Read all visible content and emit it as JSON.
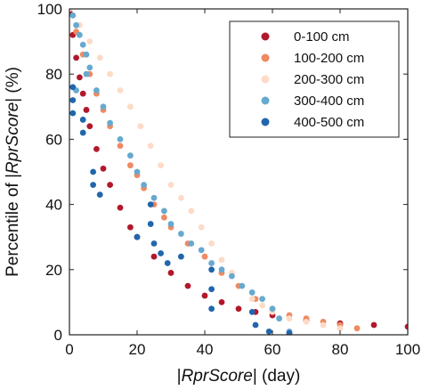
{
  "chart_data": {
    "type": "scatter",
    "title": "",
    "xlabel_prefix": "|",
    "xlabel_italic": "RprScore",
    "xlabel_suffix": "| (day)",
    "ylabel_prefix": "Percentile of |",
    "ylabel_italic": "RprScore",
    "ylabel_suffix": "| (%)",
    "xlim": [
      0,
      100
    ],
    "ylim": [
      0,
      100
    ],
    "xticks": [
      0,
      20,
      40,
      60,
      80,
      100
    ],
    "yticks": [
      0,
      20,
      40,
      60,
      80,
      100
    ],
    "grid": false,
    "legend_position": "top-right",
    "series": [
      {
        "name": "0-100 cm",
        "color": "#b2182b",
        "points": [
          [
            0,
            99
          ],
          [
            1,
            92
          ],
          [
            2,
            85
          ],
          [
            3,
            79
          ],
          [
            4,
            74
          ],
          [
            5,
            69
          ],
          [
            6,
            64
          ],
          [
            8,
            57
          ],
          [
            10,
            51
          ],
          [
            12,
            46
          ],
          [
            15,
            39
          ],
          [
            18,
            33
          ],
          [
            20,
            30
          ],
          [
            25,
            24
          ],
          [
            30,
            19
          ],
          [
            35,
            15
          ],
          [
            40,
            12
          ],
          [
            45,
            10
          ],
          [
            50,
            8
          ],
          [
            55,
            7
          ],
          [
            60,
            6
          ],
          [
            70,
            4.5
          ],
          [
            80,
            3.5
          ],
          [
            90,
            3
          ],
          [
            100,
            2.5
          ]
        ]
      },
      {
        "name": "100-200 cm",
        "color": "#ef8a62",
        "points": [
          [
            0,
            100
          ],
          [
            2,
            93
          ],
          [
            4,
            86
          ],
          [
            6,
            80
          ],
          [
            8,
            74
          ],
          [
            10,
            69
          ],
          [
            12,
            64
          ],
          [
            15,
            58
          ],
          [
            18,
            52
          ],
          [
            20,
            49
          ],
          [
            22,
            45
          ],
          [
            25,
            40
          ],
          [
            28,
            36
          ],
          [
            30,
            33
          ],
          [
            35,
            28
          ],
          [
            40,
            24
          ],
          [
            45,
            19
          ],
          [
            50,
            15
          ],
          [
            55,
            11
          ],
          [
            60,
            8
          ],
          [
            65,
            6
          ],
          [
            70,
            5
          ],
          [
            75,
            4
          ],
          [
            80,
            3
          ],
          [
            85,
            2
          ]
        ]
      },
      {
        "name": "200-300 cm",
        "color": "#fddbc7",
        "points": [
          [
            0,
            100
          ],
          [
            3,
            95
          ],
          [
            6,
            90
          ],
          [
            9,
            85
          ],
          [
            12,
            80
          ],
          [
            15,
            75
          ],
          [
            18,
            70
          ],
          [
            21,
            64
          ],
          [
            24,
            58
          ],
          [
            27,
            52
          ],
          [
            30,
            46
          ],
          [
            33,
            42
          ],
          [
            36,
            38
          ],
          [
            39,
            33
          ],
          [
            42,
            28
          ],
          [
            45,
            23
          ],
          [
            48,
            19
          ],
          [
            51,
            15
          ],
          [
            54,
            11
          ],
          [
            57,
            9
          ],
          [
            60,
            7
          ],
          [
            65,
            5
          ],
          [
            70,
            4
          ],
          [
            75,
            3
          ],
          [
            80,
            2
          ]
        ]
      },
      {
        "name": "300-400 cm",
        "color": "#67a9cf",
        "points": [
          [
            1,
            98
          ],
          [
            2,
            95
          ],
          [
            3,
            92
          ],
          [
            4,
            89
          ],
          [
            5,
            86
          ],
          [
            6,
            82
          ],
          [
            8,
            75
          ],
          [
            10,
            70
          ],
          [
            12,
            65
          ],
          [
            15,
            60
          ],
          [
            18,
            55
          ],
          [
            20,
            50
          ],
          [
            22,
            46
          ],
          [
            25,
            42
          ],
          [
            28,
            38
          ],
          [
            30,
            34
          ],
          [
            33,
            31
          ],
          [
            36,
            28
          ],
          [
            39,
            26
          ],
          [
            42,
            22
          ],
          [
            45,
            20
          ],
          [
            48,
            18
          ],
          [
            51,
            15
          ],
          [
            54,
            13
          ],
          [
            57,
            11
          ],
          [
            60,
            8
          ],
          [
            62,
            5
          ],
          [
            65,
            1
          ],
          [
            2,
            75
          ],
          [
            5,
            80
          ]
        ]
      },
      {
        "name": "400-500 cm",
        "color": "#2166ac",
        "points": [
          [
            1,
            68
          ],
          [
            1,
            72
          ],
          [
            1,
            76
          ],
          [
            4,
            66
          ],
          [
            4,
            62
          ],
          [
            7,
            50
          ],
          [
            7,
            46
          ],
          [
            9,
            43
          ],
          [
            20,
            30
          ],
          [
            24,
            40
          ],
          [
            24,
            34
          ],
          [
            25,
            28
          ],
          [
            27,
            25
          ],
          [
            29,
            22
          ],
          [
            33,
            24
          ],
          [
            42,
            20
          ],
          [
            42,
            14
          ],
          [
            42,
            8
          ],
          [
            54,
            7
          ],
          [
            55,
            3
          ],
          [
            59,
            1
          ],
          [
            65,
            0.5
          ]
        ]
      }
    ]
  }
}
